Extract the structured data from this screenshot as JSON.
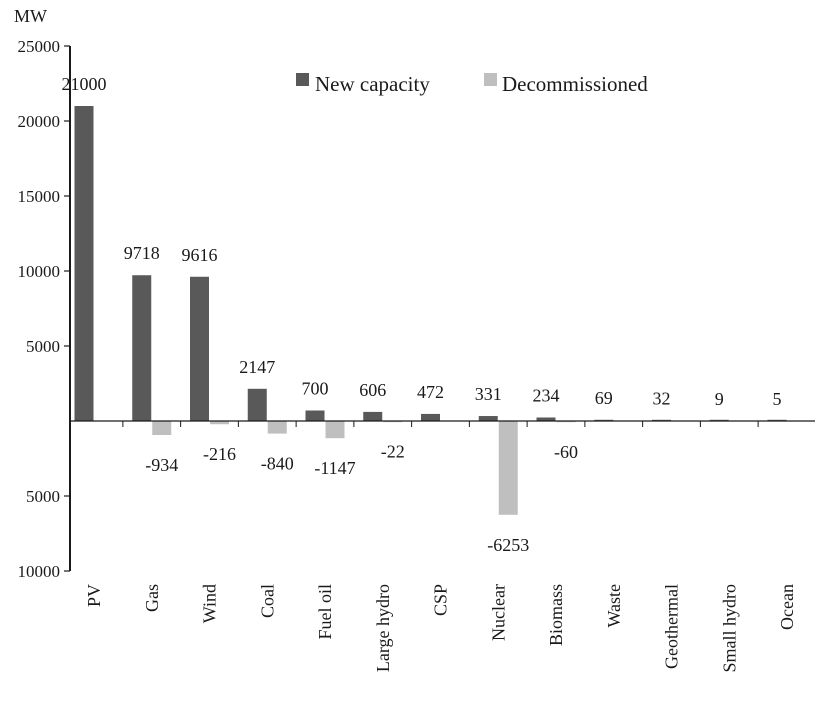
{
  "chart_data": {
    "type": "bar",
    "unit_label": "MW",
    "categories": [
      "PV",
      "Gas",
      "Wind",
      "Coal",
      "Fuel oil",
      "Large hydro",
      "CSP",
      "Nuclear",
      "Biomass",
      "Waste",
      "Geothermal",
      "Small hydro",
      "Ocean"
    ],
    "series": [
      {
        "name": "New capacity",
        "color": "#595959",
        "values": [
          21000,
          9718,
          9616,
          2147,
          700,
          606,
          472,
          331,
          234,
          69,
          32,
          9,
          5
        ],
        "labels": [
          "21000",
          "9718",
          "9616",
          "2147",
          "700",
          "606",
          "472",
          "331",
          "234",
          "69",
          "32",
          "9",
          "5"
        ]
      },
      {
        "name": "Decommissioned",
        "color": "#bfbfbf",
        "values": [
          null,
          -934,
          -216,
          -840,
          -1147,
          -22,
          null,
          -6253,
          -60,
          null,
          null,
          null,
          null
        ],
        "labels": [
          null,
          "-934",
          "-216",
          "-840",
          "-1147",
          "-22",
          null,
          "-6253",
          "-60",
          null,
          null,
          null,
          null
        ]
      }
    ],
    "ylim": [
      -10000,
      25000
    ],
    "yticks": [
      25000,
      20000,
      15000,
      10000,
      5000,
      -5000,
      -10000
    ],
    "ytick_labels": [
      "25000",
      "20000",
      "15000",
      "10000",
      "5000",
      "5000",
      "10000"
    ],
    "legend": "top-center",
    "grid": false
  }
}
